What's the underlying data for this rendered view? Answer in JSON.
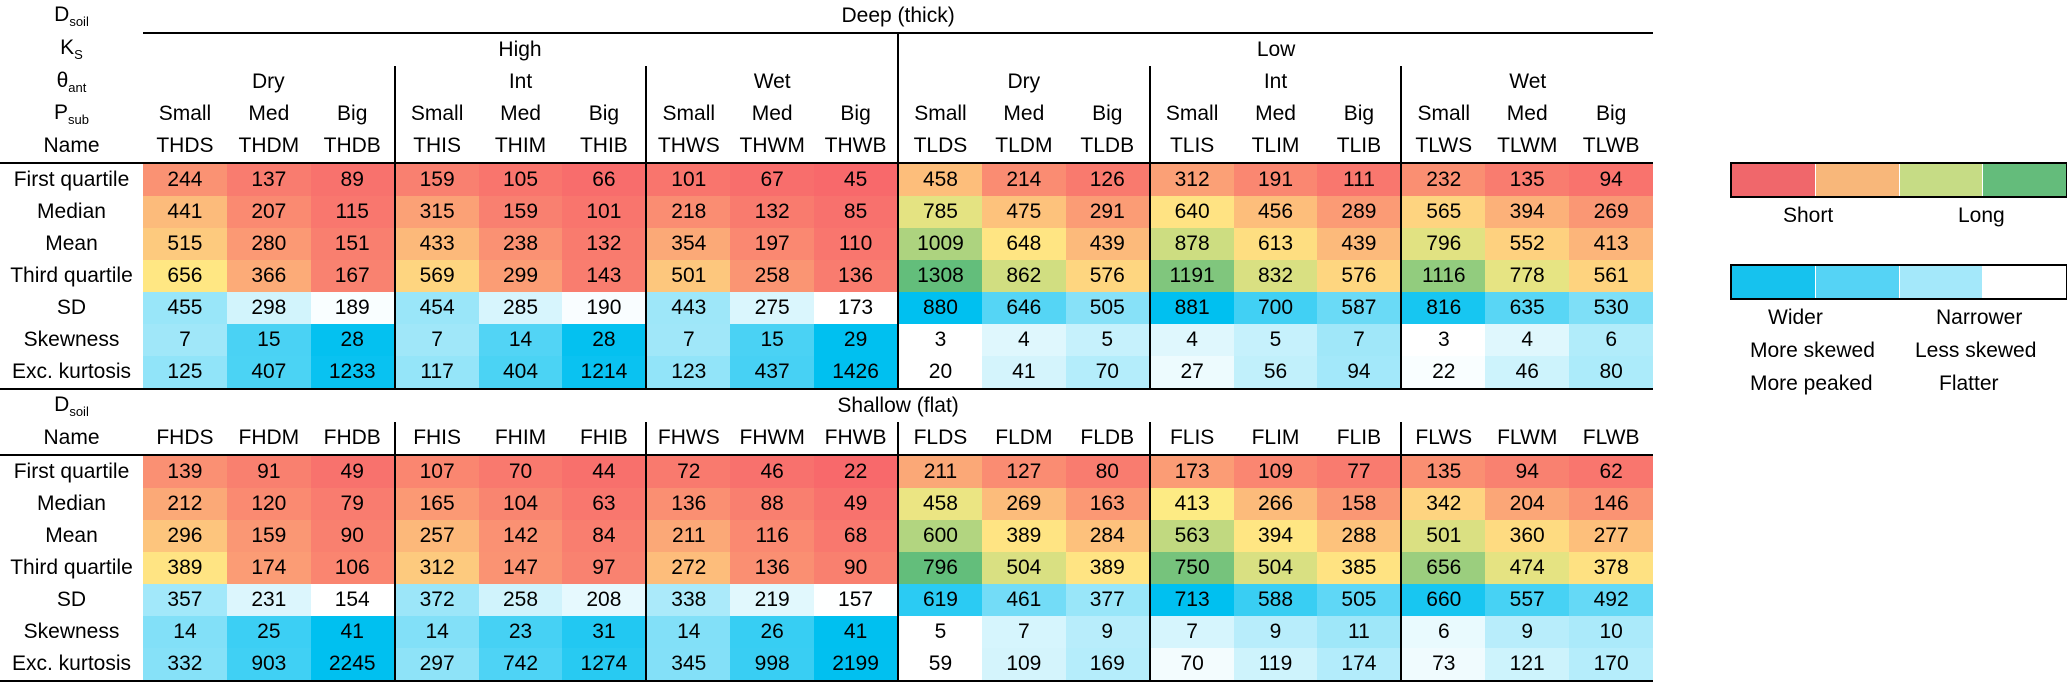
{
  "labels": {
    "dsoil": "D",
    "dsoil_sub": "soil",
    "ks": "K",
    "ks_sub": "S",
    "theta": "θ",
    "theta_sub": "ant",
    "psub": "P",
    "psub_sub": "sub",
    "name": "Name"
  },
  "deep": {
    "title": "Deep (thick)",
    "ks_groups": [
      "High",
      "Low"
    ],
    "theta_groups": [
      "Dry",
      "Int",
      "Wet",
      "Dry",
      "Int",
      "Wet"
    ],
    "psub": [
      "Small",
      "Med",
      "Big",
      "Small",
      "Med",
      "Big",
      "Small",
      "Med",
      "Big",
      "Small",
      "Med",
      "Big",
      "Small",
      "Med",
      "Big",
      "Small",
      "Med",
      "Big"
    ],
    "names": [
      "THDS",
      "THDM",
      "THDB",
      "THIS",
      "THIM",
      "THIB",
      "THWS",
      "THWM",
      "THWB",
      "TLDS",
      "TLDM",
      "TLDB",
      "TLIS",
      "TLIM",
      "TLIB",
      "TLWS",
      "TLWM",
      "TLWB"
    ],
    "rows": [
      {
        "label": "First quartile",
        "type": "warm",
        "values": [
          244,
          137,
          89,
          159,
          105,
          66,
          101,
          67,
          45,
          458,
          214,
          126,
          312,
          191,
          111,
          232,
          135,
          94
        ]
      },
      {
        "label": "Median",
        "type": "warm",
        "values": [
          441,
          207,
          115,
          315,
          159,
          101,
          218,
          132,
          85,
          785,
          475,
          291,
          640,
          456,
          289,
          565,
          394,
          269
        ]
      },
      {
        "label": "Mean",
        "type": "warm",
        "values": [
          515,
          280,
          151,
          433,
          238,
          132,
          354,
          197,
          110,
          1009,
          648,
          439,
          878,
          613,
          439,
          796,
          552,
          413
        ]
      },
      {
        "label": "Third quartile",
        "type": "warm",
        "values": [
          656,
          366,
          167,
          569,
          299,
          143,
          501,
          258,
          136,
          1308,
          862,
          576,
          1191,
          832,
          576,
          1116,
          778,
          561
        ]
      },
      {
        "label": "SD",
        "type": "sd",
        "values": [
          455,
          298,
          189,
          454,
          285,
          190,
          443,
          275,
          173,
          880,
          646,
          505,
          881,
          700,
          587,
          816,
          635,
          530
        ]
      },
      {
        "label": "Skewness",
        "type": "skew",
        "values": [
          7,
          15,
          28,
          7,
          14,
          28,
          7,
          15,
          29,
          3,
          4,
          5,
          4,
          5,
          7,
          3,
          4,
          6
        ]
      },
      {
        "label": "Exc. kurtosis",
        "type": "kurt",
        "values": [
          125,
          407,
          1233,
          117,
          404,
          1214,
          123,
          437,
          1426,
          20,
          41,
          70,
          27,
          56,
          94,
          22,
          46,
          80
        ]
      }
    ]
  },
  "shallow": {
    "title": "Shallow (flat)",
    "names": [
      "FHDS",
      "FHDM",
      "FHDB",
      "FHIS",
      "FHIM",
      "FHIB",
      "FHWS",
      "FHWM",
      "FHWB",
      "FLDS",
      "FLDM",
      "FLDB",
      "FLIS",
      "FLIM",
      "FLIB",
      "FLWS",
      "FLWM",
      "FLWB"
    ],
    "rows": [
      {
        "label": "First quartile",
        "type": "warm",
        "values": [
          139,
          91,
          49,
          107,
          70,
          44,
          72,
          46,
          22,
          211,
          127,
          80,
          173,
          109,
          77,
          135,
          94,
          62
        ]
      },
      {
        "label": "Median",
        "type": "warm",
        "values": [
          212,
          120,
          79,
          165,
          104,
          63,
          136,
          88,
          49,
          458,
          269,
          163,
          413,
          266,
          158,
          342,
          204,
          146
        ]
      },
      {
        "label": "Mean",
        "type": "warm",
        "values": [
          296,
          159,
          90,
          257,
          142,
          84,
          211,
          116,
          68,
          600,
          389,
          284,
          563,
          394,
          288,
          501,
          360,
          277
        ]
      },
      {
        "label": "Third quartile",
        "type": "warm",
        "values": [
          389,
          174,
          106,
          312,
          147,
          97,
          272,
          136,
          90,
          796,
          504,
          389,
          750,
          504,
          385,
          656,
          474,
          378
        ]
      },
      {
        "label": "SD",
        "type": "sd",
        "values": [
          357,
          231,
          154,
          372,
          258,
          208,
          338,
          219,
          157,
          619,
          461,
          377,
          713,
          588,
          505,
          660,
          557,
          492
        ]
      },
      {
        "label": "Skewness",
        "type": "skew",
        "values": [
          14,
          25,
          41,
          14,
          23,
          31,
          14,
          26,
          41,
          5,
          7,
          9,
          7,
          9,
          11,
          6,
          9,
          10
        ]
      },
      {
        "label": "Exc. kurtosis",
        "type": "kurt",
        "values": [
          332,
          903,
          2245,
          297,
          742,
          1274,
          345,
          998,
          2199,
          59,
          109,
          169,
          70,
          119,
          174,
          73,
          121,
          170
        ]
      }
    ]
  },
  "legend": {
    "warm_colors": [
      "#F0676B",
      "#F8B77A",
      "#C6DC85",
      "#64BC7B"
    ],
    "warm_left": "Short",
    "warm_right": "Long",
    "cool_colors": [
      "#16C2EE",
      "#55D3F5",
      "#A4E8FA",
      "#FFFFFF"
    ],
    "cool_rows": [
      {
        "left": "Wider",
        "right": "Narrower"
      },
      {
        "left": "More skewed",
        "right": "Less skewed"
      },
      {
        "left": "More peaked",
        "right": "Flatter"
      }
    ]
  },
  "colors": {
    "warm_short": "#F8696B",
    "warm_mid": "#FFEB84",
    "warm_long": "#63BE7B",
    "cool_wide": "#00C0F0",
    "cool_narrow": "#FFFFFF"
  }
}
